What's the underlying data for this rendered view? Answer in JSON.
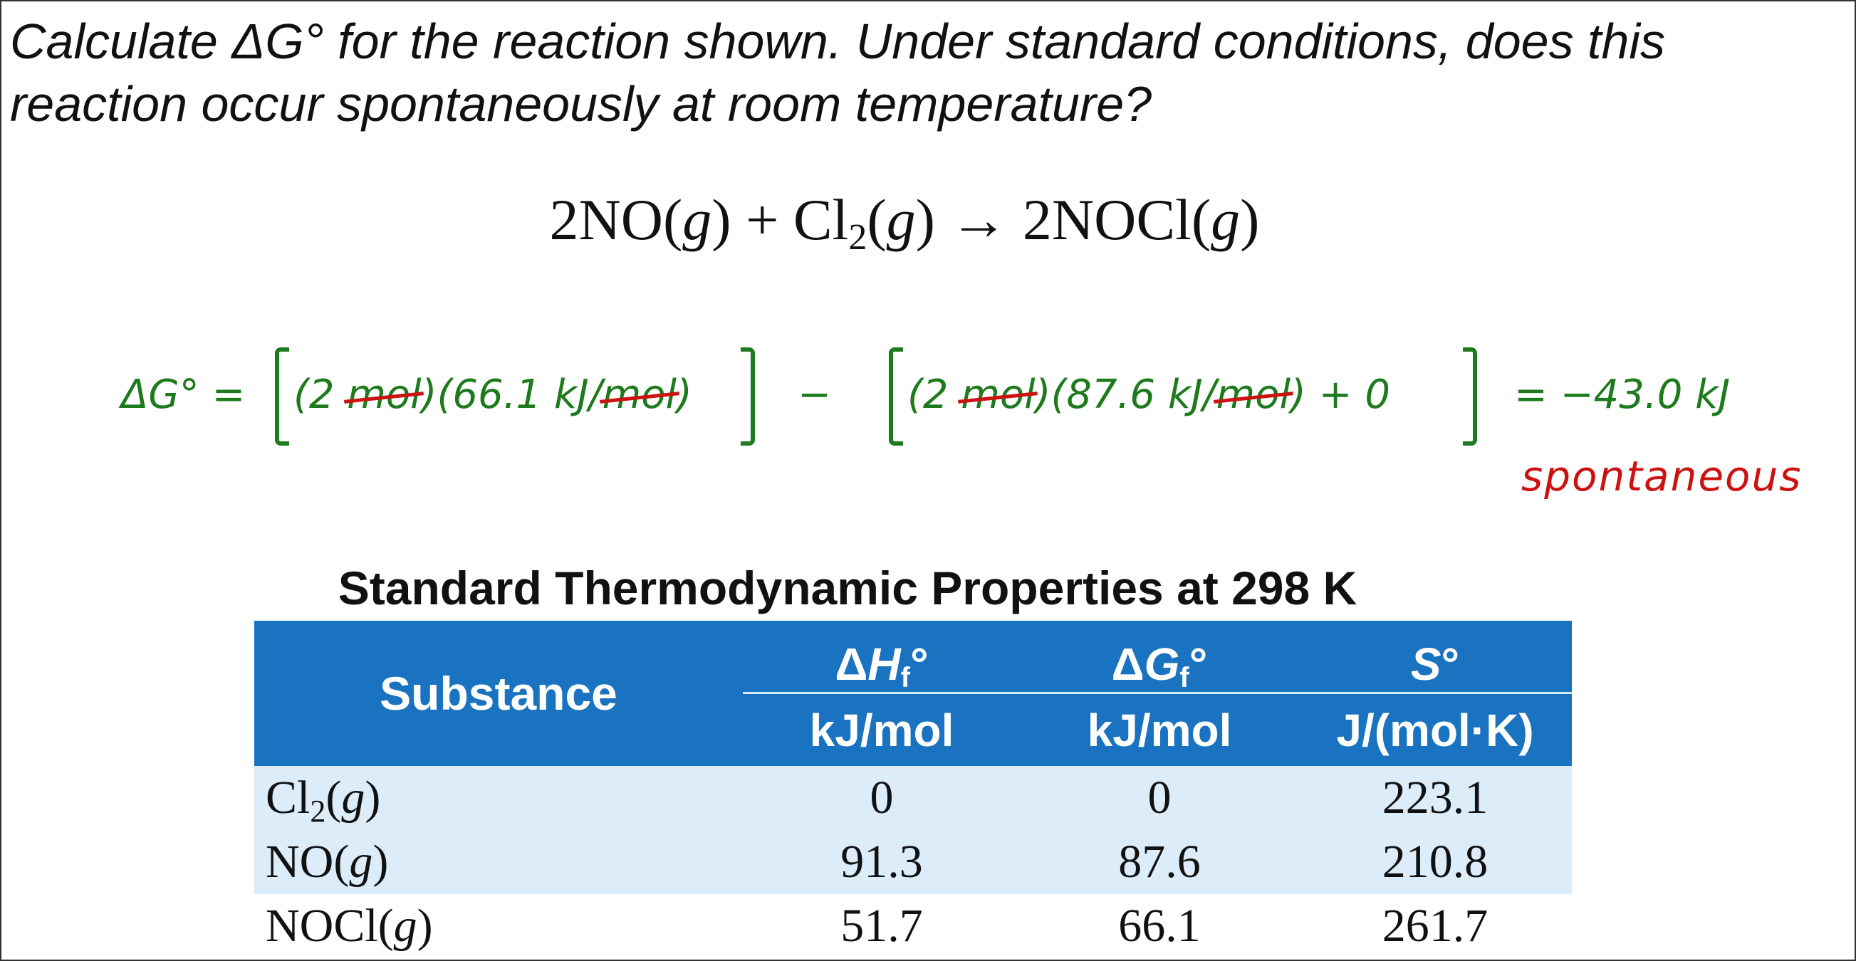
{
  "question": {
    "line1": "Calculate ΔG° for the reaction shown. Under standard conditions, does this",
    "line2": "reaction occur spontaneously at room temperature?"
  },
  "equation": {
    "text": "2NO(g) + Cl2(g) → 2NOCl(g)"
  },
  "work": {
    "lhs": "ΔG° =",
    "term1": "(2 mol)(66.1 kJ/mol)",
    "minus": "−",
    "term2": "(2 mol)(87.6 kJ/mol) + 0",
    "result": "= −43.0 kJ",
    "conclusion": "spontaneous",
    "colors": {
      "work": "#1d7a1d",
      "strike": "#cc1111"
    }
  },
  "table": {
    "title": "Standard Thermodynamic Properties at 298 K",
    "header_color": "#1a73c0",
    "columns": [
      {
        "label": "Substance"
      },
      {
        "symbol": "ΔHf°",
        "unit": "kJ/mol"
      },
      {
        "symbol": "ΔGf°",
        "unit": "kJ/mol"
      },
      {
        "symbol": "S°",
        "unit": "J/(mol·K)"
      }
    ],
    "rows": [
      {
        "substance": "Cl2(g)",
        "dHf": "0",
        "dGf": "0",
        "S": "223.1"
      },
      {
        "substance": "NO(g)",
        "dHf": "91.3",
        "dGf": "87.6",
        "S": "210.8"
      },
      {
        "substance": "NOCl(g)",
        "dHf": "51.7",
        "dGf": "66.1",
        "S": "261.7"
      }
    ]
  }
}
